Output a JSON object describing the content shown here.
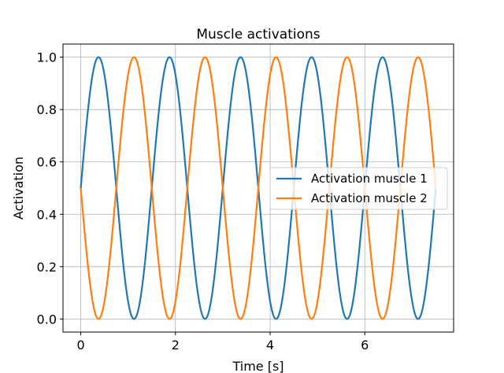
{
  "chart_data": {
    "type": "line",
    "title": "Muscle activations",
    "xlabel": "Time [s]",
    "ylabel": "Activation",
    "xlim": [
      -0.375,
      7.875
    ],
    "ylim": [
      -0.05,
      1.05
    ],
    "x_ticks": [
      0,
      2,
      4,
      6
    ],
    "x_tick_labels": [
      "0",
      "2",
      "4",
      "6"
    ],
    "y_ticks": [
      0.0,
      0.2,
      0.4,
      0.6,
      0.8,
      1.0
    ],
    "y_tick_labels": [
      "0.0",
      "0.2",
      "0.4",
      "0.6",
      "0.8",
      "1.0"
    ],
    "grid": true,
    "legend_position": "center-right",
    "x_range": [
      0,
      7.5
    ],
    "series": [
      {
        "name": "Activation muscle 1",
        "color": "#1f77b4",
        "function": "0.5 + 0.5*sin(2*pi*t/1.5)",
        "peaks_t": [
          0.375,
          1.875,
          3.375,
          4.875,
          6.375
        ],
        "troughs_t": [
          1.125,
          2.625,
          4.125,
          5.625,
          7.125
        ]
      },
      {
        "name": "Activation muscle 2",
        "color": "#ff7f0e",
        "function": "0.5 - 0.5*sin(2*pi*t/1.5)",
        "peaks_t": [
          1.125,
          2.625,
          4.125,
          5.625,
          7.125
        ],
        "troughs_t": [
          0.375,
          1.875,
          3.375,
          4.875,
          6.375
        ]
      }
    ]
  }
}
